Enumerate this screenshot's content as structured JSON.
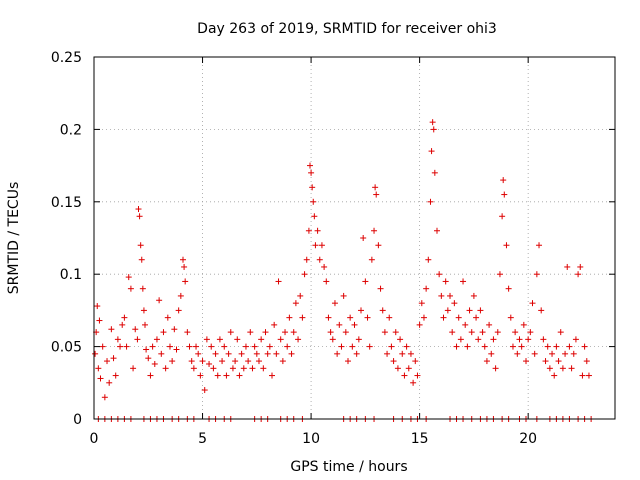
{
  "chart_data": {
    "type": "scatter",
    "title": "Day 263 of 2019, SRMTID for receiver ohi3",
    "xlabel": "GPS time / hours",
    "ylabel": "SRMTID / TECUs",
    "xlim": [
      0,
      24
    ],
    "ylim": [
      0,
      0.25
    ],
    "x_ticks": [
      0,
      5,
      10,
      15,
      20
    ],
    "x_tick_labels": [
      "0",
      "5",
      "10",
      "15",
      "20"
    ],
    "y_ticks": [
      0,
      0.05,
      0.1,
      0.15,
      0.2,
      0.25
    ],
    "y_tick_labels": [
      "0",
      "0.05",
      "0.1",
      "0.15",
      "0.2",
      "0.25"
    ],
    "grid": true,
    "marker": "+",
    "color": "#dd0000",
    "series": [
      {
        "name": "SRMTID",
        "points": [
          [
            0.05,
            0.045
          ],
          [
            0.1,
            0.06
          ],
          [
            0.15,
            0.078
          ],
          [
            0.2,
            0.035
          ],
          [
            0.25,
            0.068
          ],
          [
            0.3,
            0.028
          ],
          [
            0.4,
            0.05
          ],
          [
            0.5,
            0.015
          ],
          [
            0.6,
            0.04
          ],
          [
            0.7,
            0.025
          ],
          [
            0.8,
            0.062
          ],
          [
            0.9,
            0.042
          ],
          [
            1.0,
            0.03
          ],
          [
            1.1,
            0.055
          ],
          [
            1.2,
            0.05
          ],
          [
            1.3,
            0.065
          ],
          [
            1.4,
            0.07
          ],
          [
            1.5,
            0.05
          ],
          [
            1.6,
            0.098
          ],
          [
            1.7,
            0.09
          ],
          [
            1.8,
            0.035
          ],
          [
            1.9,
            0.062
          ],
          [
            2.0,
            0.055
          ],
          [
            2.05,
            0.145
          ],
          [
            2.1,
            0.14
          ],
          [
            2.15,
            0.12
          ],
          [
            2.2,
            0.11
          ],
          [
            2.25,
            0.09
          ],
          [
            2.3,
            0.075
          ],
          [
            2.35,
            0.065
          ],
          [
            2.4,
            0.048
          ],
          [
            2.5,
            0.042
          ],
          [
            2.6,
            0.03
          ],
          [
            2.7,
            0.05
          ],
          [
            2.8,
            0.038
          ],
          [
            2.9,
            0.055
          ],
          [
            3.0,
            0.082
          ],
          [
            3.1,
            0.045
          ],
          [
            3.2,
            0.06
          ],
          [
            3.3,
            0.035
          ],
          [
            3.4,
            0.07
          ],
          [
            3.5,
            0.05
          ],
          [
            3.6,
            0.04
          ],
          [
            3.7,
            0.062
          ],
          [
            3.8,
            0.048
          ],
          [
            3.9,
            0.075
          ],
          [
            4.0,
            0.085
          ],
          [
            4.1,
            0.11
          ],
          [
            4.15,
            0.105
          ],
          [
            4.2,
            0.095
          ],
          [
            4.3,
            0.06
          ],
          [
            4.4,
            0.05
          ],
          [
            4.5,
            0.04
          ],
          [
            4.6,
            0.035
          ],
          [
            4.7,
            0.05
          ],
          [
            4.8,
            0.045
          ],
          [
            4.9,
            0.03
          ],
          [
            5.0,
            0.04
          ],
          [
            5.1,
            0.02
          ],
          [
            5.2,
            0.055
          ],
          [
            5.3,
            0.038
          ],
          [
            5.4,
            0.05
          ],
          [
            5.5,
            0.035
          ],
          [
            5.6,
            0.045
          ],
          [
            5.7,
            0.03
          ],
          [
            5.8,
            0.055
          ],
          [
            5.9,
            0.04
          ],
          [
            6.0,
            0.05
          ],
          [
            6.1,
            0.03
          ],
          [
            6.2,
            0.045
          ],
          [
            6.3,
            0.06
          ],
          [
            6.4,
            0.035
          ],
          [
            6.5,
            0.04
          ],
          [
            6.6,
            0.055
          ],
          [
            6.7,
            0.03
          ],
          [
            6.8,
            0.045
          ],
          [
            6.9,
            0.035
          ],
          [
            7.0,
            0.05
          ],
          [
            7.1,
            0.04
          ],
          [
            7.2,
            0.06
          ],
          [
            7.3,
            0.035
          ],
          [
            7.4,
            0.05
          ],
          [
            7.5,
            0.045
          ],
          [
            7.6,
            0.04
          ],
          [
            7.7,
            0.055
          ],
          [
            7.8,
            0.035
          ],
          [
            7.9,
            0.06
          ],
          [
            8.0,
            0.045
          ],
          [
            8.1,
            0.05
          ],
          [
            8.2,
            0.03
          ],
          [
            8.3,
            0.065
          ],
          [
            8.4,
            0.045
          ],
          [
            8.5,
            0.095
          ],
          [
            8.6,
            0.055
          ],
          [
            8.7,
            0.04
          ],
          [
            8.8,
            0.06
          ],
          [
            8.9,
            0.05
          ],
          [
            9.0,
            0.07
          ],
          [
            9.1,
            0.045
          ],
          [
            9.2,
            0.06
          ],
          [
            9.3,
            0.08
          ],
          [
            9.4,
            0.055
          ],
          [
            9.5,
            0.085
          ],
          [
            9.6,
            0.07
          ],
          [
            9.7,
            0.1
          ],
          [
            9.8,
            0.11
          ],
          [
            9.9,
            0.13
          ],
          [
            9.95,
            0.175
          ],
          [
            10.0,
            0.17
          ],
          [
            10.05,
            0.16
          ],
          [
            10.1,
            0.15
          ],
          [
            10.15,
            0.14
          ],
          [
            10.2,
            0.12
          ],
          [
            10.3,
            0.13
          ],
          [
            10.4,
            0.11
          ],
          [
            10.5,
            0.12
          ],
          [
            10.6,
            0.105
          ],
          [
            10.7,
            0.095
          ],
          [
            10.8,
            0.07
          ],
          [
            10.9,
            0.06
          ],
          [
            11.0,
            0.055
          ],
          [
            11.1,
            0.08
          ],
          [
            11.2,
            0.045
          ],
          [
            11.3,
            0.065
          ],
          [
            11.4,
            0.05
          ],
          [
            11.5,
            0.085
          ],
          [
            11.6,
            0.06
          ],
          [
            11.7,
            0.04
          ],
          [
            11.8,
            0.07
          ],
          [
            11.9,
            0.05
          ],
          [
            12.0,
            0.065
          ],
          [
            12.1,
            0.045
          ],
          [
            12.2,
            0.055
          ],
          [
            12.3,
            0.075
          ],
          [
            12.4,
            0.125
          ],
          [
            12.5,
            0.095
          ],
          [
            12.6,
            0.07
          ],
          [
            12.7,
            0.05
          ],
          [
            12.8,
            0.11
          ],
          [
            12.9,
            0.13
          ],
          [
            12.95,
            0.16
          ],
          [
            13.0,
            0.155
          ],
          [
            13.1,
            0.12
          ],
          [
            13.2,
            0.09
          ],
          [
            13.3,
            0.075
          ],
          [
            13.4,
            0.06
          ],
          [
            13.5,
            0.045
          ],
          [
            13.6,
            0.07
          ],
          [
            13.7,
            0.05
          ],
          [
            13.8,
            0.04
          ],
          [
            13.9,
            0.06
          ],
          [
            14.0,
            0.035
          ],
          [
            14.1,
            0.055
          ],
          [
            14.2,
            0.045
          ],
          [
            14.3,
            0.03
          ],
          [
            14.4,
            0.05
          ],
          [
            14.5,
            0.035
          ],
          [
            14.6,
            0.045
          ],
          [
            14.7,
            0.025
          ],
          [
            14.8,
            0.04
          ],
          [
            14.9,
            0.03
          ],
          [
            15.0,
            0.065
          ],
          [
            15.1,
            0.08
          ],
          [
            15.2,
            0.07
          ],
          [
            15.3,
            0.09
          ],
          [
            15.4,
            0.11
          ],
          [
            15.5,
            0.15
          ],
          [
            15.55,
            0.185
          ],
          [
            15.6,
            0.205
          ],
          [
            15.65,
            0.2
          ],
          [
            15.7,
            0.17
          ],
          [
            15.8,
            0.13
          ],
          [
            15.9,
            0.1
          ],
          [
            16.0,
            0.085
          ],
          [
            16.1,
            0.07
          ],
          [
            16.2,
            0.095
          ],
          [
            16.3,
            0.075
          ],
          [
            16.4,
            0.085
          ],
          [
            16.5,
            0.06
          ],
          [
            16.6,
            0.08
          ],
          [
            16.7,
            0.05
          ],
          [
            16.8,
            0.07
          ],
          [
            16.9,
            0.055
          ],
          [
            17.0,
            0.095
          ],
          [
            17.1,
            0.065
          ],
          [
            17.2,
            0.05
          ],
          [
            17.3,
            0.075
          ],
          [
            17.4,
            0.06
          ],
          [
            17.5,
            0.085
          ],
          [
            17.6,
            0.07
          ],
          [
            17.7,
            0.055
          ],
          [
            17.8,
            0.075
          ],
          [
            17.9,
            0.06
          ],
          [
            18.0,
            0.05
          ],
          [
            18.1,
            0.04
          ],
          [
            18.2,
            0.065
          ],
          [
            18.3,
            0.045
          ],
          [
            18.4,
            0.055
          ],
          [
            18.5,
            0.035
          ],
          [
            18.6,
            0.06
          ],
          [
            18.7,
            0.1
          ],
          [
            18.8,
            0.14
          ],
          [
            18.85,
            0.165
          ],
          [
            18.9,
            0.155
          ],
          [
            19.0,
            0.12
          ],
          [
            19.1,
            0.09
          ],
          [
            19.2,
            0.07
          ],
          [
            19.3,
            0.05
          ],
          [
            19.4,
            0.06
          ],
          [
            19.5,
            0.045
          ],
          [
            19.6,
            0.055
          ],
          [
            19.7,
            0.05
          ],
          [
            19.8,
            0.065
          ],
          [
            19.9,
            0.04
          ],
          [
            20.0,
            0.055
          ],
          [
            20.1,
            0.06
          ],
          [
            20.2,
            0.08
          ],
          [
            20.3,
            0.045
          ],
          [
            20.4,
            0.1
          ],
          [
            20.5,
            0.12
          ],
          [
            20.6,
            0.075
          ],
          [
            20.7,
            0.055
          ],
          [
            20.8,
            0.04
          ],
          [
            20.9,
            0.05
          ],
          [
            21.0,
            0.035
          ],
          [
            21.1,
            0.045
          ],
          [
            21.2,
            0.03
          ],
          [
            21.3,
            0.05
          ],
          [
            21.4,
            0.04
          ],
          [
            21.5,
            0.06
          ],
          [
            21.6,
            0.035
          ],
          [
            21.7,
            0.045
          ],
          [
            21.8,
            0.105
          ],
          [
            21.9,
            0.05
          ],
          [
            22.0,
            0.035
          ],
          [
            22.1,
            0.045
          ],
          [
            22.2,
            0.055
          ],
          [
            22.3,
            0.1
          ],
          [
            22.4,
            0.105
          ],
          [
            22.5,
            0.03
          ],
          [
            22.6,
            0.05
          ],
          [
            22.7,
            0.04
          ],
          [
            22.8,
            0.03
          ]
        ]
      }
    ],
    "baseline_zero_points_x": [
      0.2,
      0.5,
      0.8,
      1.1,
      1.4,
      1.7,
      2.3,
      2.6,
      2.9,
      3.2,
      3.6,
      3.9,
      4.3,
      4.6,
      5.3,
      5.6,
      6.0,
      6.3,
      7.4,
      7.7,
      8.0,
      8.6,
      8.9,
      9.2,
      9.6,
      11.5,
      11.8,
      12.1,
      12.5,
      12.9,
      13.8,
      14.2,
      14.6,
      14.9,
      15.3,
      16.4,
      16.7,
      17.0,
      17.4,
      17.8,
      18.1,
      18.4,
      18.8,
      19.1,
      19.6,
      19.9,
      20.4,
      21.0,
      21.3,
      21.6,
      21.9,
      22.3,
      22.6,
      22.9
    ]
  }
}
